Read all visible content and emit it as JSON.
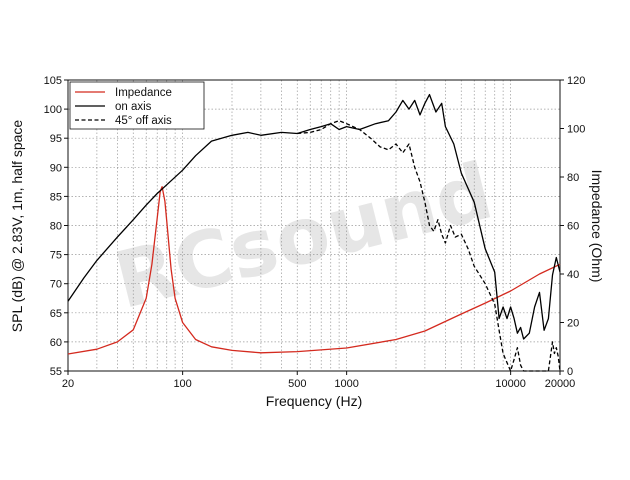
{
  "chart_data": {
    "type": "line",
    "title": "",
    "xlabel": "Frequency (Hz)",
    "ylabel": "SPL (dB) @ 2.83V, 1m, half space",
    "y2label": "Impedance (Ohm)",
    "x_scale": "log",
    "xlim": [
      20,
      20000
    ],
    "ylim": [
      55,
      105
    ],
    "y2lim": [
      0,
      120
    ],
    "x_tick_labels": [
      "20",
      "100",
      "500",
      "1000",
      "10000",
      "20000"
    ],
    "y_tick_labels": [
      "55",
      "60",
      "65",
      "70",
      "75",
      "80",
      "85",
      "90",
      "95",
      "100",
      "105"
    ],
    "y2_tick_labels": [
      "0",
      "20",
      "40",
      "60",
      "80",
      "100",
      "120"
    ],
    "grid": true,
    "legend_position": "top-left",
    "watermark": "RCsound",
    "colors": {
      "impedance": "#d42a1f",
      "on_axis": "#000000",
      "off_axis": "#000000"
    },
    "series": [
      {
        "name": "Impedance",
        "axis": "right",
        "style": "solid",
        "x": [
          20,
          30,
          40,
          50,
          60,
          65,
          70,
          73,
          75,
          78,
          80,
          85,
          90,
          100,
          120,
          150,
          200,
          300,
          500,
          1000,
          2000,
          3000,
          5000,
          7000,
          10000,
          15000,
          20000
        ],
        "y": [
          7,
          9,
          12,
          17,
          30,
          44,
          63,
          74,
          76,
          70,
          62,
          42,
          30,
          20,
          13,
          10,
          8.5,
          7.5,
          8,
          9.5,
          13,
          16.5,
          23.5,
          28,
          33,
          40,
          44
        ]
      },
      {
        "name": "on axis",
        "axis": "left",
        "style": "solid",
        "x": [
          20,
          25,
          30,
          40,
          50,
          60,
          70,
          80,
          100,
          120,
          150,
          200,
          250,
          300,
          400,
          500,
          600,
          700,
          800,
          900,
          1000,
          1200,
          1500,
          1800,
          2000,
          2200,
          2400,
          2600,
          2800,
          3000,
          3200,
          3500,
          3800,
          4000,
          4500,
          5000,
          6000,
          7000,
          8000,
          8500,
          9000,
          9500,
          10000,
          10500,
          11000,
          11500,
          12000,
          13000,
          14000,
          15000,
          16000,
          17000,
          18000,
          19000,
          20000
        ],
        "y": [
          67,
          71,
          74,
          78,
          81,
          83.5,
          85.5,
          87,
          89.5,
          92,
          94.5,
          95.5,
          96,
          95.5,
          96,
          95.8,
          96.5,
          97,
          97.5,
          96.5,
          97,
          96.5,
          97.5,
          98,
          99.5,
          101.5,
          100,
          101.5,
          99,
          101,
          102.5,
          99.5,
          101,
          97,
          94,
          89,
          84,
          76,
          72,
          64,
          66,
          64,
          66,
          64,
          61.5,
          62.5,
          60.5,
          61.5,
          66,
          68.5,
          62,
          64,
          71.5,
          74.5,
          72
        ]
      },
      {
        "name": "45° off axis",
        "axis": "left",
        "style": "dashed",
        "x": [
          500,
          600,
          700,
          800,
          900,
          1000,
          1200,
          1400,
          1600,
          1800,
          2000,
          2200,
          2400,
          2600,
          2800,
          3000,
          3200,
          3400,
          3600,
          3800,
          4000,
          4300,
          4600,
          5000,
          5500,
          6000,
          7000,
          8000,
          8500,
          9000,
          10000,
          10500,
          11000,
          11500,
          12000,
          13000,
          14000,
          15000,
          17000,
          18000,
          18500,
          19000,
          19500,
          20000
        ],
        "y": [
          95.8,
          96,
          96.5,
          97.5,
          98,
          97.5,
          96.5,
          95,
          93.5,
          93,
          94,
          92.5,
          94,
          90,
          87.5,
          84,
          80,
          79,
          81,
          78.5,
          77,
          80,
          78,
          78.5,
          76,
          73,
          70,
          66.5,
          62,
          58,
          55,
          57,
          59,
          56,
          55,
          55,
          55,
          55,
          55,
          60,
          58,
          59,
          57.5,
          55
        ]
      }
    ]
  }
}
